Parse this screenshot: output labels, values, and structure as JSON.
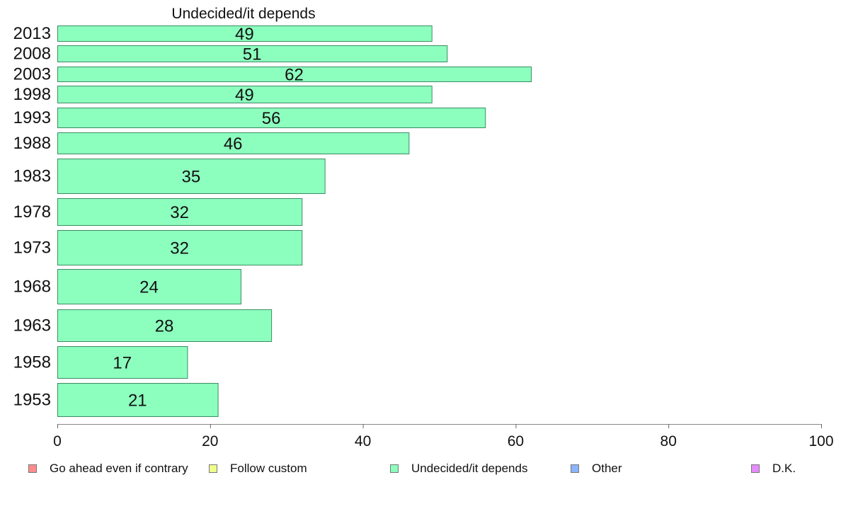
{
  "chart_data": {
    "type": "bar",
    "orientation": "horizontal",
    "title": "Undecided/it depends",
    "categories": [
      "2013",
      "2008",
      "2003",
      "1998",
      "1993",
      "1988",
      "1983",
      "1978",
      "1973",
      "1968",
      "1963",
      "1958",
      "1953"
    ],
    "series": [
      {
        "name": "Undecided/it depends",
        "values": [
          49,
          51,
          62,
          49,
          56,
          46,
          35,
          32,
          32,
          24,
          28,
          17,
          21
        ],
        "labels": [
          "49",
          "51",
          "62",
          "49",
          "56",
          "46",
          "35",
          "32",
          "32",
          "24",
          "28",
          "17",
          "21"
        ]
      }
    ],
    "xlim": [
      0,
      100
    ],
    "xticks": [
      0,
      20,
      40,
      60,
      80,
      100
    ],
    "xtick_labels": [
      "0",
      "20",
      "40",
      "60",
      "80",
      "100"
    ],
    "grid": false,
    "legend_position": "bottom",
    "legend": [
      {
        "label": "Go ahead even if contrary",
        "color": "#ff8c8c"
      },
      {
        "label": "Follow custom",
        "color": "#f0ff8c"
      },
      {
        "label": "Undecided/it depends",
        "color": "#8cffbe"
      },
      {
        "label": "Other",
        "color": "#8cb4ff"
      },
      {
        "label": "D.K.",
        "color": "#e68cff"
      }
    ],
    "bar_color": "#8cffbe",
    "bar_edge_color": "#3c8c64"
  }
}
